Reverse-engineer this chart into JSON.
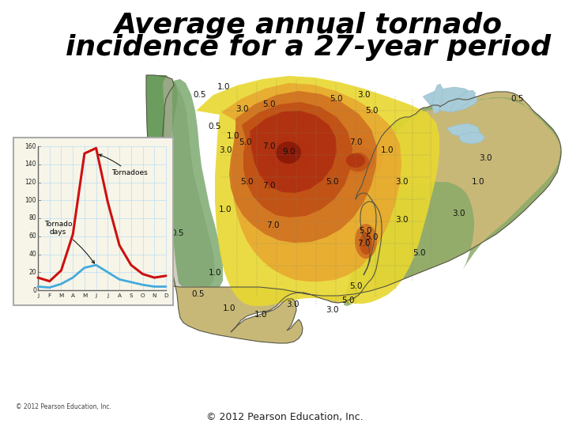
{
  "title_line1": "Average annual tornado",
  "title_line2": "incidence for a 27-year period",
  "title_fontsize": 26,
  "title_fontstyle": "italic",
  "title_fontweight": "bold",
  "background_color": "#ffffff",
  "copyright_text": "© 2012 Pearson Education, Inc.",
  "copyright_small": "© 2012 Pearson Education, Inc.",
  "inset_months": [
    "J",
    "F",
    "M",
    "A",
    "M",
    "J",
    "J",
    "A",
    "S",
    "O",
    "N",
    "D"
  ],
  "tornadoes_values": [
    14,
    10,
    22,
    62,
    152,
    158,
    98,
    50,
    28,
    18,
    14,
    16
  ],
  "tornado_days_values": [
    4,
    3,
    7,
    14,
    25,
    28,
    20,
    12,
    9,
    6,
    4,
    4
  ],
  "inset_bg": "#f7f5e8",
  "tornadoes_color": "#cc1111",
  "tornado_days_color": "#44aadd",
  "inset_grid_color": "#bbddf5",
  "color_green_dark": "#6b9e5e",
  "color_green_med": "#8aaa68",
  "color_green_light": "#a0b870",
  "color_tan": "#c8b878",
  "color_yellow": "#e8d830",
  "color_orange_light": "#e8a830",
  "color_orange": "#d07020",
  "color_orange_dark": "#c05015",
  "color_red": "#b03010",
  "color_red_dark": "#8b1a08",
  "color_blue_lake": "#a8ccd8",
  "color_terrain_gray": "#b8b0a0",
  "color_terrain_light": "#ccc4b0"
}
